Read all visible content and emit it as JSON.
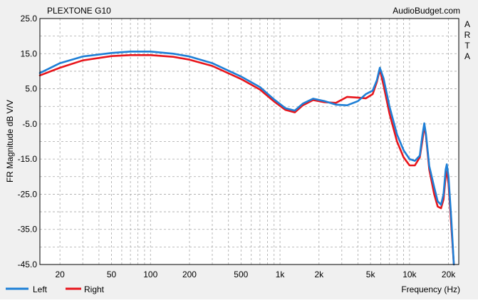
{
  "header": {
    "title": "PLEXTONE G10",
    "credit": "AudioBudget.com",
    "side_label": [
      "A",
      "R",
      "T",
      "A"
    ]
  },
  "chart_data": {
    "type": "line",
    "xlabel": "Frequency (Hz)",
    "ylabel": "FR Magnitude dB V/V",
    "x_scale": "log",
    "xlim": [
      14,
      24000
    ],
    "ylim": [
      -45,
      25
    ],
    "grid": true,
    "legend_position": "bottom-left",
    "x_ticks": [
      {
        "value": 20,
        "label": "20"
      },
      {
        "value": 50,
        "label": "50"
      },
      {
        "value": 100,
        "label": "100"
      },
      {
        "value": 200,
        "label": "200"
      },
      {
        "value": 500,
        "label": "500"
      },
      {
        "value": 1000,
        "label": "1k"
      },
      {
        "value": 2000,
        "label": "2k"
      },
      {
        "value": 5000,
        "label": "5k"
      },
      {
        "value": 10000,
        "label": "10k"
      },
      {
        "value": 20000,
        "label": "20k"
      }
    ],
    "y_ticks": [
      {
        "value": 25,
        "label": "25.0"
      },
      {
        "value": 15,
        "label": "15.0"
      },
      {
        "value": 5,
        "label": "5.0"
      },
      {
        "value": -5,
        "label": "-5.0"
      },
      {
        "value": -15,
        "label": "-15.0"
      },
      {
        "value": -25,
        "label": "-25.0"
      },
      {
        "value": -35,
        "label": "-35.0"
      },
      {
        "value": -45,
        "label": "-45.0"
      }
    ],
    "series": [
      {
        "name": "Left",
        "color": "#1e7fd6",
        "points": [
          [
            14,
            9.5
          ],
          [
            20,
            12.3
          ],
          [
            30,
            14.2
          ],
          [
            50,
            15.2
          ],
          [
            70,
            15.6
          ],
          [
            100,
            15.6
          ],
          [
            150,
            15.0
          ],
          [
            200,
            14.2
          ],
          [
            300,
            12.3
          ],
          [
            500,
            8.5
          ],
          [
            700,
            5.5
          ],
          [
            900,
            2.0
          ],
          [
            1100,
            -0.5
          ],
          [
            1300,
            -1.2
          ],
          [
            1500,
            0.8
          ],
          [
            1800,
            2.2
          ],
          [
            2200,
            1.5
          ],
          [
            2700,
            0.5
          ],
          [
            3300,
            0.3
          ],
          [
            4000,
            1.5
          ],
          [
            4600,
            3.5
          ],
          [
            5200,
            4.5
          ],
          [
            5600,
            7.5
          ],
          [
            5900,
            11.0
          ],
          [
            6300,
            8.0
          ],
          [
            7000,
            0.0
          ],
          [
            8000,
            -8.0
          ],
          [
            9000,
            -12.5
          ],
          [
            10000,
            -15.0
          ],
          [
            11000,
            -15.5
          ],
          [
            12000,
            -14.0
          ],
          [
            12600,
            -8.0
          ],
          [
            13000,
            -4.8
          ],
          [
            13400,
            -8.0
          ],
          [
            14200,
            -17.0
          ],
          [
            15500,
            -23.0
          ],
          [
            16500,
            -27.0
          ],
          [
            17500,
            -28.0
          ],
          [
            18300,
            -25.0
          ],
          [
            19000,
            -18.0
          ],
          [
            19400,
            -16.5
          ],
          [
            20000,
            -20.0
          ],
          [
            21000,
            -32.0
          ],
          [
            22000,
            -45.0
          ]
        ]
      },
      {
        "name": "Right",
        "color": "#e8151b",
        "points": [
          [
            14,
            8.8
          ],
          [
            20,
            11.0
          ],
          [
            30,
            13.1
          ],
          [
            50,
            14.3
          ],
          [
            70,
            14.6
          ],
          [
            100,
            14.6
          ],
          [
            150,
            14.1
          ],
          [
            200,
            13.3
          ],
          [
            300,
            11.5
          ],
          [
            500,
            7.8
          ],
          [
            700,
            4.8
          ],
          [
            900,
            1.4
          ],
          [
            1100,
            -1.0
          ],
          [
            1300,
            -1.7
          ],
          [
            1500,
            0.3
          ],
          [
            1800,
            1.8
          ],
          [
            2200,
            1.2
          ],
          [
            2700,
            1.0
          ],
          [
            3300,
            2.7
          ],
          [
            4000,
            2.5
          ],
          [
            4600,
            2.3
          ],
          [
            5200,
            3.5
          ],
          [
            5600,
            7.0
          ],
          [
            5900,
            10.5
          ],
          [
            6300,
            6.0
          ],
          [
            7000,
            -2.0
          ],
          [
            8000,
            -10.0
          ],
          [
            9000,
            -14.5
          ],
          [
            10000,
            -16.8
          ],
          [
            11000,
            -16.8
          ],
          [
            12000,
            -14.5
          ],
          [
            12600,
            -9.5
          ],
          [
            13000,
            -5.5
          ],
          [
            13400,
            -8.5
          ],
          [
            14200,
            -18.0
          ],
          [
            15500,
            -25.0
          ],
          [
            16500,
            -28.5
          ],
          [
            17500,
            -29.0
          ],
          [
            18300,
            -26.5
          ],
          [
            19000,
            -20.0
          ],
          [
            19400,
            -18.5
          ],
          [
            20000,
            -22.0
          ],
          [
            21000,
            -34.0
          ],
          [
            22000,
            -45.0
          ]
        ]
      }
    ]
  }
}
